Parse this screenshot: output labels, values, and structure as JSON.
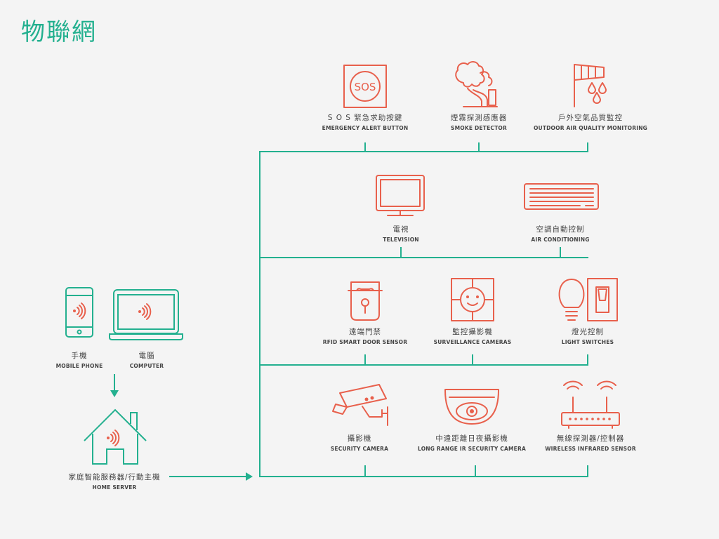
{
  "title": "物聯網",
  "clients": [
    {
      "zh": "手機",
      "en": "MOBILE PHONE"
    },
    {
      "zh": "電腦",
      "en": "COMPUTER"
    }
  ],
  "server": {
    "zh": "家庭智能服務器/行動主機",
    "en": "HOME SERVER"
  },
  "devices": [
    {
      "zh": "S O S 緊急求助按鍵",
      "en": "EMERGENCY ALERT BUTTON",
      "icon": "sos-button-icon"
    },
    {
      "zh": "煙霧探測感應器",
      "en": "SMOKE DETECTOR",
      "icon": "smoke-detector-icon"
    },
    {
      "zh": "戶外空氣品質監控",
      "en": "OUTDOOR AIR QUALITY MONITORING",
      "icon": "air-quality-icon"
    },
    {
      "zh": "電視",
      "en": "TELEVISION",
      "icon": "television-icon"
    },
    {
      "zh": "空調自動控制",
      "en": "AIR CONDITIONING",
      "icon": "air-conditioner-icon"
    },
    {
      "zh": "遠端門禁",
      "en": "RFID SMART DOOR SENSOR",
      "icon": "door-lock-icon"
    },
    {
      "zh": "監控攝影機",
      "en": "SURVEILLANCE CAMERAS",
      "icon": "surveillance-camera-icon"
    },
    {
      "zh": "燈光控制",
      "en": "LIGHT SWITCHES",
      "icon": "light-switch-icon"
    },
    {
      "zh": "攝影機",
      "en": "SECURITY CAMERA",
      "icon": "security-camera-icon"
    },
    {
      "zh": "中遠距離日夜攝影機",
      "en": "LONG RANGE IR SECURITY CAMERA",
      "icon": "dome-camera-icon"
    },
    {
      "zh": "無線探測器/控制器",
      "en": "WIRELESS INFRARED SENSOR",
      "icon": "wireless-router-icon"
    }
  ],
  "colors": {
    "accent": "#23b08f",
    "device": "#e8604c",
    "text": "#444444"
  }
}
